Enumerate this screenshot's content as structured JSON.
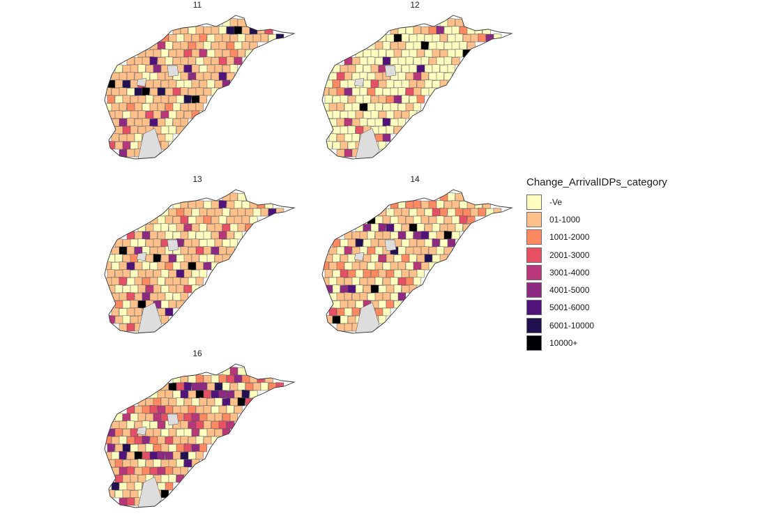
{
  "colors": {
    "no_data": "#dddddd",
    "border": "#555555"
  },
  "panels": [
    {
      "title": "11",
      "pattern": [
        0,
        1,
        1,
        0,
        1,
        1,
        2,
        1,
        0,
        1,
        1,
        3,
        1,
        0,
        1,
        1,
        6,
        1,
        1,
        0,
        1,
        2,
        1,
        1,
        0,
        1,
        7,
        1,
        1,
        3,
        0,
        1,
        1,
        8,
        1,
        0,
        1,
        1,
        5,
        1,
        1,
        0,
        1,
        4,
        1,
        1,
        0,
        7,
        1,
        1
      ]
    },
    {
      "title": "12",
      "pattern": [
        0,
        0,
        1,
        0,
        0,
        1,
        0,
        1,
        0,
        0,
        1,
        0,
        2,
        0,
        1,
        0,
        0,
        1,
        0,
        5,
        0,
        0,
        1,
        0,
        0,
        3,
        0,
        1,
        0,
        0,
        6,
        0,
        1,
        0,
        0,
        8,
        0,
        0,
        1,
        0,
        2,
        0,
        0,
        1,
        0,
        4,
        0,
        0,
        1,
        0
      ]
    },
    {
      "title": "13",
      "pattern": [
        1,
        0,
        1,
        1,
        2,
        0,
        1,
        1,
        0,
        5,
        1,
        0,
        1,
        1,
        3,
        0,
        1,
        0,
        1,
        6,
        1,
        0,
        1,
        1,
        0,
        8,
        1,
        0,
        1,
        4,
        0,
        1,
        1,
        0,
        1,
        2,
        1,
        0,
        1,
        5,
        0,
        1,
        1,
        0,
        1,
        3,
        0,
        1,
        1,
        0
      ]
    },
    {
      "title": "14",
      "pattern": [
        1,
        0,
        1,
        2,
        0,
        1,
        1,
        0,
        5,
        1,
        0,
        1,
        2,
        0,
        1,
        6,
        0,
        1,
        1,
        0,
        3,
        1,
        0,
        1,
        7,
        0,
        1,
        2,
        0,
        1,
        1,
        0,
        4,
        1,
        0,
        1,
        8,
        0,
        1,
        1,
        0,
        2,
        1,
        0,
        5,
        1,
        0,
        1,
        2,
        0
      ]
    },
    {
      "title": "16",
      "pattern": [
        1,
        2,
        1,
        0,
        3,
        1,
        5,
        0,
        1,
        2,
        4,
        1,
        0,
        1,
        6,
        1,
        3,
        0,
        1,
        2,
        7,
        1,
        0,
        4,
        1,
        1,
        3,
        0,
        8,
        1,
        2,
        1,
        0,
        5,
        1,
        3,
        0,
        1,
        4,
        1,
        2,
        0,
        6,
        1,
        1,
        3,
        0,
        1,
        2,
        5
      ]
    }
  ],
  "legend": {
    "title": "Change_ArrivalIDPs_category",
    "items": [
      {
        "label": "-Ve",
        "color": "#fcfdbf"
      },
      {
        "label": "01-1000",
        "color": "#fdc08b"
      },
      {
        "label": "1001-2000",
        "color": "#fc8961"
      },
      {
        "label": "2001-3000",
        "color": "#e55064"
      },
      {
        "label": "3001-4000",
        "color": "#b73779"
      },
      {
        "label": "4001-5000",
        "color": "#8c2981"
      },
      {
        "label": "5001-6000",
        "color": "#51127c"
      },
      {
        "label": "6001-10000",
        "color": "#221150"
      },
      {
        "label": "10000+",
        "color": "#000004"
      }
    ]
  }
}
